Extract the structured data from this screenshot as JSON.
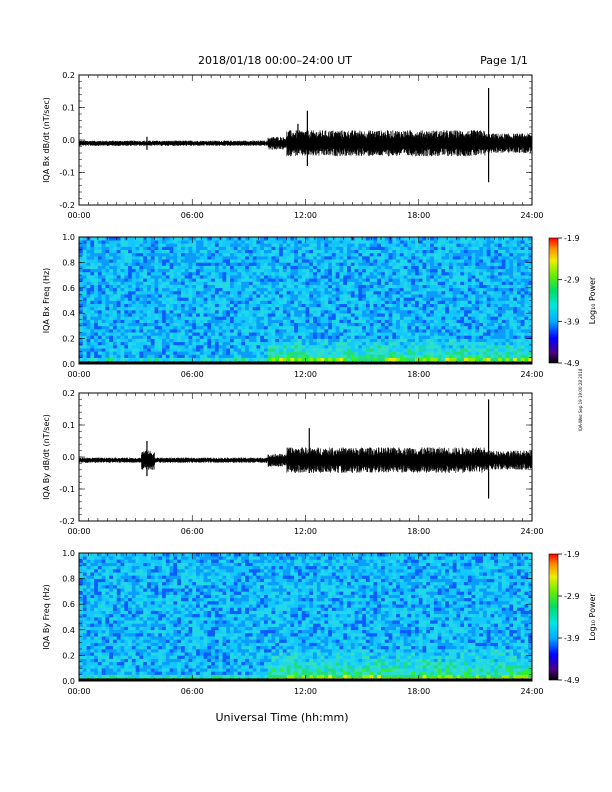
{
  "header": {
    "title": "2018/01/18   00:00–24:00 UT",
    "page": "Page 1/1"
  },
  "footer": {
    "xlabel": "Universal Time (hh:mm)"
  },
  "stamp": "IQA-Wed Sep 19 19:00:28 2018",
  "chart_data": [
    {
      "type": "line",
      "ylabel": "IQA Bx dB/dt (nT/sec)",
      "xlim": [
        0,
        24
      ],
      "ylim": [
        -0.2,
        0.2
      ],
      "x_tick_labels": [
        "00:00",
        "06:00",
        "12:00",
        "18:00",
        "24:00"
      ],
      "y_tick_labels": [
        "0.2",
        "0.1",
        "0.0",
        "-0.1",
        "-0.2"
      ],
      "baseline": -0.01,
      "noise_envelope": [
        {
          "from": 0,
          "to": 10,
          "amplitude": 0.008
        },
        {
          "from": 10,
          "to": 11,
          "amplitude": 0.02
        },
        {
          "from": 11,
          "to": 21.5,
          "amplitude": 0.04
        },
        {
          "from": 21.5,
          "to": 24,
          "amplitude": 0.03
        }
      ],
      "spikes": [
        {
          "x": 3.6,
          "min": -0.03,
          "max": 0.01
        },
        {
          "x": 11.6,
          "min": -0.04,
          "max": 0.05
        },
        {
          "x": 12.1,
          "min": -0.08,
          "max": 0.09
        },
        {
          "x": 21.7,
          "min": -0.13,
          "max": 0.16
        }
      ]
    },
    {
      "type": "heatmap",
      "ylabel": "IQA Bx Freq (Hz)",
      "xlim": [
        0,
        24
      ],
      "ylim": [
        0,
        1.0
      ],
      "x_tick_labels": [
        "00:00",
        "06:00",
        "12:00",
        "18:00",
        "24:00"
      ],
      "y_tick_labels": [
        "1.0",
        "0.8",
        "0.6",
        "0.4",
        "0.2",
        "0.0"
      ],
      "colorbar": {
        "label": "Log₁₀ Power",
        "range": [
          -4.9,
          -1.9
        ],
        "tick_labels": [
          "-1.9",
          "-2.9",
          "-3.9",
          "-4.9"
        ]
      },
      "enhanced_regions": [
        {
          "x_from": 0,
          "x_to": 24,
          "f_to": 0.05
        },
        {
          "x_from": 10,
          "x_to": 24,
          "f_to": 0.2
        }
      ]
    },
    {
      "type": "line",
      "ylabel": "IQA By dB/dt (nT/sec)",
      "xlim": [
        0,
        24
      ],
      "ylim": [
        -0.2,
        0.2
      ],
      "x_tick_labels": [
        "00:00",
        "06:00",
        "12:00",
        "18:00",
        "24:00"
      ],
      "y_tick_labels": [
        "0.2",
        "0.1",
        "0.0",
        "-0.1",
        "-0.2"
      ],
      "baseline": -0.01,
      "noise_envelope": [
        {
          "from": 0,
          "to": 3.3,
          "amplitude": 0.008
        },
        {
          "from": 3.3,
          "to": 4.0,
          "amplitude": 0.03
        },
        {
          "from": 4.0,
          "to": 10,
          "amplitude": 0.008
        },
        {
          "from": 10,
          "to": 11,
          "amplitude": 0.02
        },
        {
          "from": 11,
          "to": 21.5,
          "amplitude": 0.04
        },
        {
          "from": 21.5,
          "to": 24,
          "amplitude": 0.03
        }
      ],
      "spikes": [
        {
          "x": 3.6,
          "min": -0.06,
          "max": 0.05
        },
        {
          "x": 12.2,
          "min": -0.05,
          "max": 0.09
        },
        {
          "x": 21.7,
          "min": -0.13,
          "max": 0.18
        }
      ]
    },
    {
      "type": "heatmap",
      "ylabel": "IQA By Freq (Hz)",
      "xlim": [
        0,
        24
      ],
      "ylim": [
        0,
        1.0
      ],
      "x_tick_labels": [
        "00:00",
        "06:00",
        "12:00",
        "18:00",
        "24:00"
      ],
      "y_tick_labels": [
        "1.0",
        "0.8",
        "0.6",
        "0.4",
        "0.2",
        "0.0"
      ],
      "colorbar": {
        "label": "Log₁₀ Power",
        "range": [
          -4.9,
          -1.9
        ],
        "tick_labels": [
          "-1.9",
          "-2.9",
          "-3.9",
          "-4.9"
        ]
      },
      "enhanced_regions": [
        {
          "x_from": 0,
          "x_to": 24,
          "f_to": 0.05
        },
        {
          "x_from": 10,
          "x_to": 24,
          "f_to": 0.25
        }
      ]
    }
  ]
}
